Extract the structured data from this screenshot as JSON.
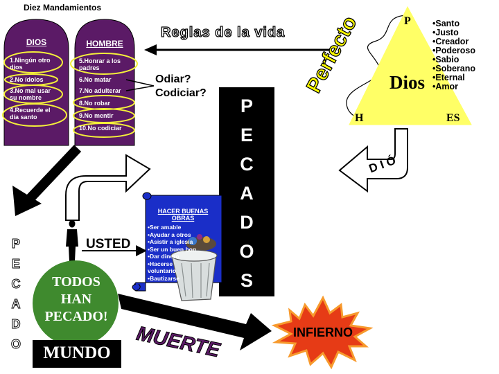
{
  "tablets": {
    "heading": "Diez Mandamientos",
    "dios": {
      "title": "DIOS",
      "items": [
        "1.Ningún otro dios",
        "2.No ídolos",
        "3.No mal usar su nombre",
        "4.Recuerde el día santo"
      ]
    },
    "hombre": {
      "title": "HOMBRE",
      "items": [
        "5.Honrar a los padres",
        "6.No matar",
        "7.No adulterar",
        "8.No robar",
        "9.No mentir",
        "10.No codiciar"
      ]
    }
  },
  "reglas_label": "Reglas de la vida",
  "perfecto_label": "Perfecto",
  "odiar_label": "Odiar?",
  "codiciar_label": "Codiciar?",
  "triangle": {
    "top": "P",
    "left": "H",
    "right": "ES",
    "center": "Dios",
    "attributes": [
      "•Santo",
      "•Justo",
      "•Creador",
      "•Poderoso",
      "•Sabio",
      "•Soberano",
      "•Eternal",
      "•Amor"
    ]
  },
  "dio_label": "D I Ó",
  "pecados_letters": [
    "P",
    "E",
    "C",
    "A",
    "D",
    "O",
    "S"
  ],
  "pecado_letters": [
    "P",
    "E",
    "C",
    "A",
    "D",
    "O"
  ],
  "usted_label": "USTED",
  "scroll": {
    "title": "HACER BUENAS OBRAS",
    "items": [
      "•Ser amable",
      "•Ayudar a otros",
      "•Asistir a iglesia",
      "•Ser un buen hombre",
      "•Dar dinero",
      "•Hacerse voluntario",
      "•Bautizarse"
    ]
  },
  "todos_label": "TODOS HAN PECADO!",
  "mundo_label": "MUNDO",
  "muerte_label": "MUERTE",
  "infierno_label": "INFIERNO",
  "colors": {
    "tablet_purple": "#5b1a66",
    "ellipse_yellow": "#f4ef3a",
    "triangle_yellow": "#ffff66",
    "perfecto_yellow": "#ffff00",
    "circle_green": "#3f8a2e",
    "scroll_blue": "#1a2ec8",
    "burst_red": "#e63b16",
    "burst_orange": "#f79a2d"
  }
}
